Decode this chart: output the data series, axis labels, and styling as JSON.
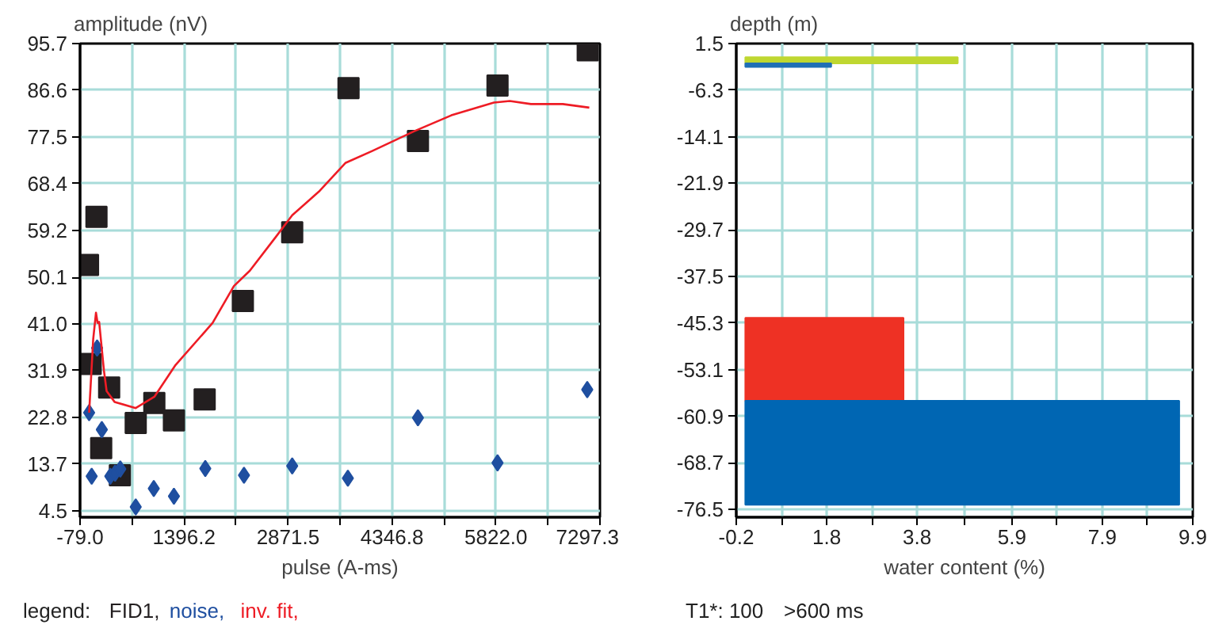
{
  "chart_data": [
    {
      "type": "scatter",
      "ylabel": "amplitude (nV)",
      "xlabel": "pulse (A-ms)",
      "legend_title": "legend:",
      "grid": true,
      "xlim": [
        -79.0,
        7297.3
      ],
      "xticks": [
        {
          "value": -79.0,
          "label": "-79.0"
        },
        {
          "value": 658.6,
          "label": null
        },
        1396.2,
        {
          "value": 2133.9,
          "label": null
        },
        2871.5,
        {
          "value": 3609.2,
          "label": null
        },
        4346.8,
        {
          "value": 5084.4,
          "label": null
        },
        {
          "value": 5822.0,
          "label": "5822.0"
        },
        {
          "value": 6559.7,
          "label": null
        },
        7297.3
      ],
      "ylim": [
        3.3,
        95.7
      ],
      "yticks": [
        4.5,
        13.7,
        22.8,
        31.9,
        {
          "value": 41.0,
          "label": "41.0"
        },
        50.1,
        59.2,
        68.4,
        77.5,
        86.6,
        95.7
      ],
      "series": [
        {
          "name": "FID1,",
          "type": "scatter",
          "marker": "square",
          "color": "#231f20",
          "x": [
            34,
            72,
            154,
            221,
            334,
            486,
            711,
            975,
            1253,
            1689,
            2231,
            2931,
            3730,
            4715,
            5844,
            7124
          ],
          "values": [
            52.5,
            33.2,
            61.9,
            16.8,
            28.6,
            11.5,
            21.7,
            25.6,
            22.2,
            26.3,
            45.5,
            58.9,
            87.0,
            76.7,
            87.5,
            94.4
          ]
        },
        {
          "name": "noise,",
          "type": "scatter",
          "marker": "diamond",
          "color": "#1f4fa0",
          "x": [
            50,
            86,
            163,
            230,
            350,
            418,
            492,
            711,
            967,
            1253,
            1698,
            2247,
            2931,
            3721,
            4715,
            5844,
            7117
          ],
          "values": [
            23.7,
            11.3,
            36.3,
            20.4,
            11.3,
            11.9,
            12.7,
            5.3,
            8.9,
            7.4,
            12.8,
            11.5,
            13.3,
            10.9,
            22.7,
            13.9,
            28.2
          ]
        },
        {
          "name": "inv. fit,",
          "type": "line",
          "marker": "none",
          "color": "#ee1c25",
          "x": [
            50,
            108,
            147,
            170,
            192,
            260,
            298,
            411,
            711,
            975,
            1276,
            1802,
            2104,
            2330,
            2705,
            2931,
            3308,
            3685,
            4060,
            4663,
            5189,
            5792,
            6018,
            6318,
            6770,
            7146
          ],
          "values": [
            23.7,
            38.1,
            43.2,
            41.2,
            41.4,
            31.9,
            27.9,
            25.8,
            24.6,
            26.8,
            33.0,
            41.2,
            48.4,
            51.4,
            58.1,
            62.2,
            66.8,
            72.4,
            74.7,
            78.6,
            81.7,
            84.2,
            84.5,
            83.9,
            83.9,
            83.2
          ]
        }
      ]
    },
    {
      "type": "histogram",
      "orientation": "horizontal",
      "ylabel": "depth (m)",
      "xlabel": "water content (%)",
      "grid": true,
      "xlim": [
        -0.2,
        9.9
      ],
      "xticks": [
        -0.2,
        {
          "value": 0.8,
          "label": null
        },
        1.8,
        {
          "value": 2.8,
          "label": null
        },
        3.8,
        {
          "value": 4.85,
          "label": null
        },
        5.9,
        {
          "value": 6.9,
          "label": null
        },
        7.9,
        {
          "value": 8.9,
          "label": null
        },
        9.9
      ],
      "ylim": [
        -77.8,
        1.5
      ],
      "yticks": [
        1.5,
        -6.3,
        -14.1,
        -21.9,
        -29.7,
        -37.5,
        -45.3,
        -53.1,
        -60.9,
        -68.7,
        -76.5
      ],
      "bins": [
        -0.8,
        -1.8,
        -2.4,
        -44.4,
        -58.3,
        -75.7
      ],
      "values": [
        4.7,
        1.9,
        null,
        3.5,
        9.6
      ],
      "colors": [
        "#bfd730",
        "#1f6fb5",
        null,
        "#ee3124",
        "#0066b3"
      ],
      "annotations": [
        "T1*: 100",
        ">600 ms"
      ]
    }
  ]
}
